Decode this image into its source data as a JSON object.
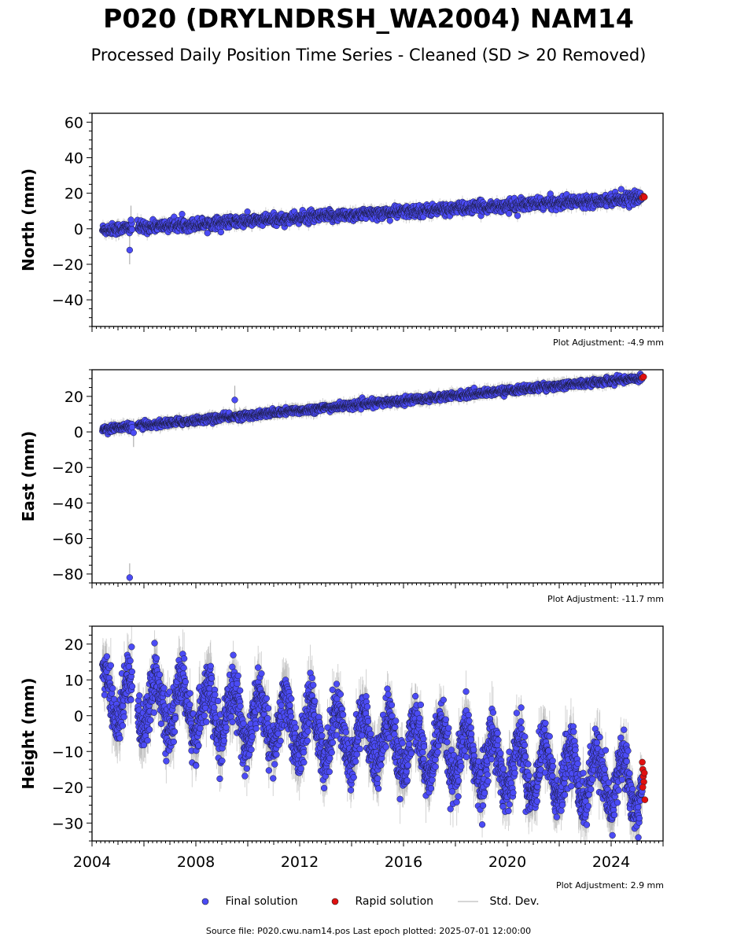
{
  "header": {
    "title": "P020 (DRYLNDRSH_WA2004) NAM14",
    "subtitle": "Processed Daily Position Time Series - Cleaned (SD > 20 Removed)"
  },
  "colors": {
    "final": "#4b4bf5",
    "rapid": "#e01010",
    "std": "#b0b0b0"
  },
  "chart_data": [
    {
      "type": "scatter",
      "ylabel": "North (mm)",
      "xlim": [
        2004.0,
        2026.0
      ],
      "ylim": [
        -55,
        65
      ],
      "yticks": [
        -40,
        -20,
        0,
        20,
        40,
        60
      ],
      "adjustment": "Plot Adjustment: -4.9 mm",
      "series": [
        {
          "name": "Final solution",
          "trend": {
            "x": [
              2004.4,
              2025.2
            ],
            "y": [
              -0.5,
              17.5
            ]
          },
          "scatter_mm": 1.6,
          "outliers": [
            {
              "x": 2005.45,
              "y": -12
            },
            {
              "x": 2005.5,
              "y": 5
            }
          ]
        },
        {
          "name": "Rapid solution",
          "points": [
            {
              "x": 2025.2,
              "y": 17.5
            },
            {
              "x": 2025.25,
              "y": 18.3
            },
            {
              "x": 2025.28,
              "y": 17.8
            }
          ]
        }
      ]
    },
    {
      "type": "scatter",
      "ylabel": "East (mm)",
      "xlim": [
        2004.0,
        2026.0
      ],
      "ylim": [
        -85,
        35
      ],
      "yticks": [
        -80,
        -60,
        -40,
        -20,
        0,
        20
      ],
      "adjustment": "Plot Adjustment: -11.7 mm",
      "series": [
        {
          "name": "Final solution",
          "trend": {
            "x": [
              2004.4,
              2025.2
            ],
            "y": [
              1.5,
              30.5
            ]
          },
          "scatter_mm": 1.0,
          "outliers": [
            {
              "x": 2005.45,
              "y": -82
            },
            {
              "x": 2009.5,
              "y": 18
            },
            {
              "x": 2005.6,
              "y": -0.5
            }
          ]
        },
        {
          "name": "Rapid solution",
          "points": [
            {
              "x": 2025.2,
              "y": 30.5
            },
            {
              "x": 2025.25,
              "y": 31.0
            }
          ]
        }
      ]
    },
    {
      "type": "scatter",
      "ylabel": "Height (mm)",
      "xlim": [
        2004.0,
        2026.0
      ],
      "ylim": [
        -35,
        25
      ],
      "yticks": [
        -30,
        -20,
        -10,
        0,
        10,
        20
      ],
      "xticks": [
        2004,
        2008,
        2012,
        2016,
        2020,
        2024
      ],
      "adjustment": "Plot Adjustment: 2.9 mm",
      "series": [
        {
          "name": "Final solution",
          "trend": {
            "x": [
              2004.4,
              2025.2
            ],
            "y": [
              6.0,
              -20.0
            ]
          },
          "seasonal_amplitude_mm": 7.5,
          "scatter_mm": 3.5
        },
        {
          "name": "Rapid solution",
          "points": [
            {
              "x": 2025.2,
              "y": -13
            },
            {
              "x": 2025.22,
              "y": -15
            },
            {
              "x": 2025.24,
              "y": -17
            },
            {
              "x": 2025.26,
              "y": -18.5
            },
            {
              "x": 2025.28,
              "y": -16
            },
            {
              "x": 2025.3,
              "y": -23.5
            },
            {
              "x": 2025.22,
              "y": -20
            }
          ]
        }
      ]
    }
  ],
  "legend": {
    "final": "Final solution",
    "rapid": "Rapid solution",
    "std": "Std. Dev."
  },
  "footer": "Source file: P020.cwu.nam14.pos  Last epoch plotted: 2025-07-01 12:00:00"
}
